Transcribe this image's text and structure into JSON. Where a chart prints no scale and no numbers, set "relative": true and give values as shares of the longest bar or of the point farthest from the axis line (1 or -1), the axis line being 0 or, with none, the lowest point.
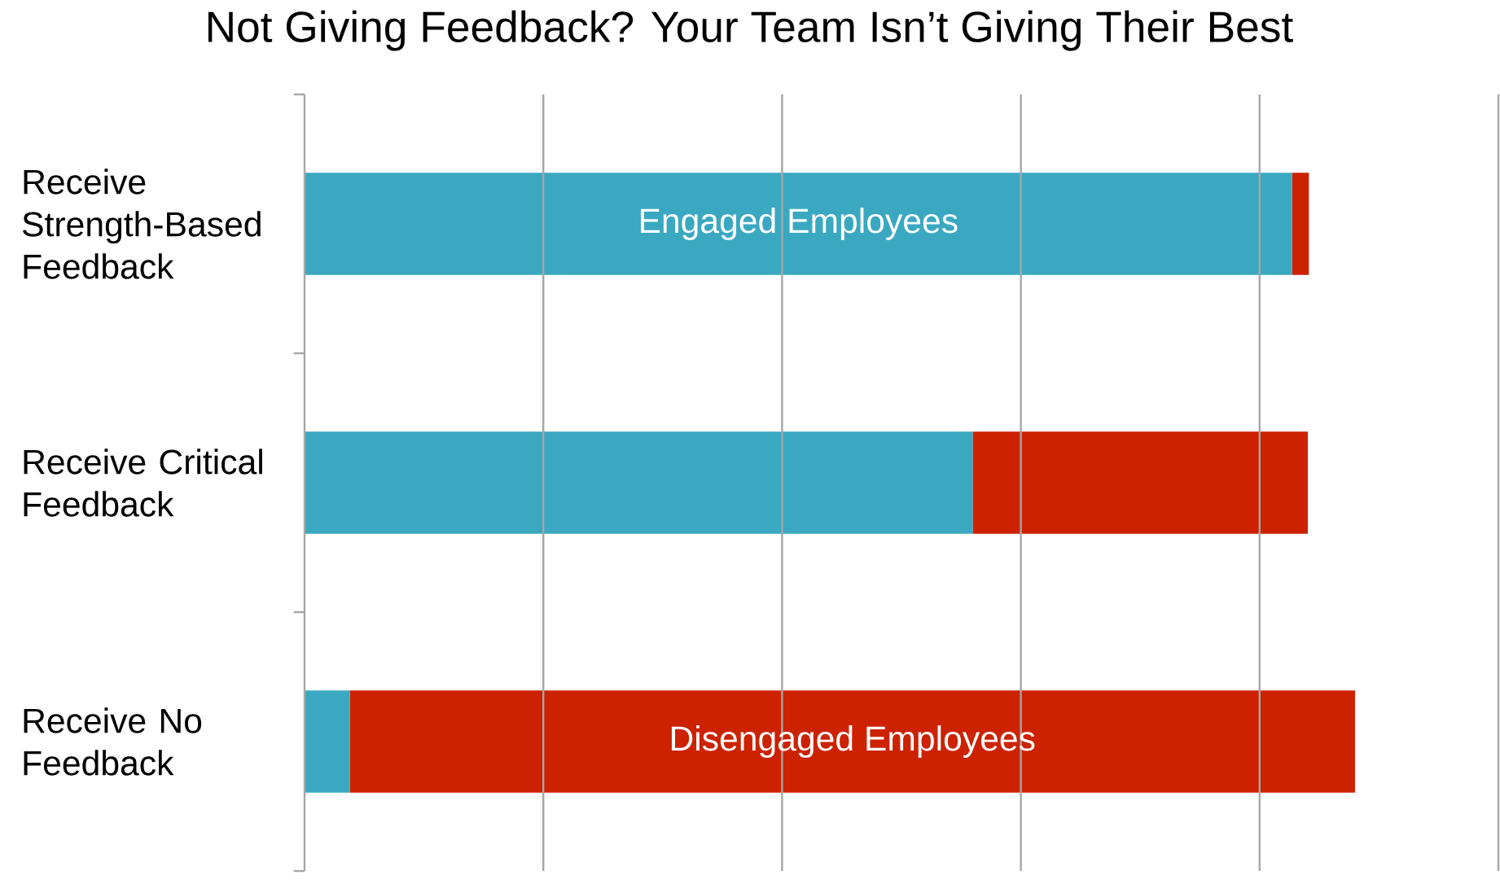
{
  "chart_data": {
    "type": "bar",
    "orientation": "horizontal",
    "stacked": true,
    "relative": true,
    "grid": "x",
    "title": "Not Giving Feedback?  Your Team Isn’t Giving Their Best",
    "categories": [
      "Receive Strength-Based Feedback",
      "Receive Critical Feedback",
      "Receive No Feedback"
    ],
    "series": [
      {
        "name": "Engaged Employees",
        "color": "#3aa8c1",
        "values": [
          0.94,
          0.636,
          0.043
        ]
      },
      {
        "name": "Disengaged Employees",
        "color": "#cc2200",
        "values": [
          0.016,
          0.319,
          0.957
        ]
      }
    ]
  }
}
